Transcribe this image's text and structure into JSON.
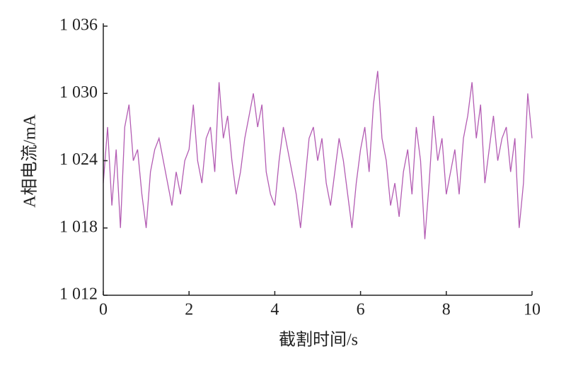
{
  "chart_data": {
    "type": "line",
    "x_label": "截割时间/s",
    "y_label": "A相电流/mA",
    "x": [
      0,
      0.1,
      0.2,
      0.3,
      0.4,
      0.5,
      0.6,
      0.7,
      0.8,
      0.9,
      1,
      1.1,
      1.2,
      1.3,
      1.4,
      1.5,
      1.6,
      1.7,
      1.8,
      1.9,
      2,
      2.1,
      2.2,
      2.3,
      2.4,
      2.5,
      2.6,
      2.7,
      2.8,
      2.9,
      3,
      3.1,
      3.2,
      3.3,
      3.4,
      3.5,
      3.6,
      3.7,
      3.8,
      3.9,
      4,
      4.1,
      4.2,
      4.3,
      4.4,
      4.5,
      4.6,
      4.7,
      4.8,
      4.9,
      5,
      5.1,
      5.2,
      5.3,
      5.4,
      5.5,
      5.6,
      5.7,
      5.8,
      5.9,
      6,
      6.1,
      6.2,
      6.3,
      6.4,
      6.5,
      6.6,
      6.7,
      6.8,
      6.9,
      7,
      7.1,
      7.2,
      7.3,
      7.4,
      7.5,
      7.6,
      7.7,
      7.8,
      7.9,
      8,
      8.1,
      8.2,
      8.3,
      8.4,
      8.5,
      8.6,
      8.7,
      8.8,
      8.9,
      9,
      9.1,
      9.2,
      9.3,
      9.4,
      9.5,
      9.6,
      9.7,
      9.8,
      9.9,
      10
    ],
    "series": [
      {
        "color": "#b35cb3",
        "values": [
          1022,
          1027,
          1020,
          1025,
          1018,
          1027,
          1029,
          1024,
          1025,
          1021,
          1018,
          1023,
          1025,
          1026,
          1024,
          1022,
          1020,
          1023,
          1021,
          1024,
          1025,
          1029,
          1024,
          1022,
          1026,
          1027,
          1023,
          1031,
          1026,
          1028,
          1024,
          1021,
          1023,
          1026,
          1028,
          1030,
          1027,
          1029,
          1023,
          1021,
          1020,
          1024,
          1027,
          1025,
          1023,
          1021,
          1018,
          1022,
          1026,
          1027,
          1024,
          1026,
          1022,
          1020,
          1023,
          1026,
          1024,
          1021,
          1018,
          1022,
          1025,
          1027,
          1023,
          1029,
          1032,
          1026,
          1024,
          1020,
          1022,
          1019,
          1023,
          1025,
          1021,
          1027,
          1024,
          1017,
          1022,
          1028,
          1024,
          1026,
          1021,
          1023,
          1025,
          1021,
          1026,
          1028,
          1031,
          1026,
          1029,
          1022,
          1025,
          1028,
          1024,
          1026,
          1027,
          1023,
          1026,
          1018,
          1022,
          1030,
          1026
        ]
      }
    ],
    "xlim": [
      0,
      10
    ],
    "xticks": [
      0,
      2,
      4,
      6,
      8,
      10
    ],
    "ylim": [
      1012,
      1036
    ],
    "yticks": [
      {
        "value": 1012,
        "label": "1 012"
      },
      {
        "value": 1018,
        "label": "1 018"
      },
      {
        "value": 1024,
        "label": "1 024"
      },
      {
        "value": 1030,
        "label": "1 030"
      },
      {
        "value": 1036,
        "label": "1 036"
      }
    ]
  }
}
